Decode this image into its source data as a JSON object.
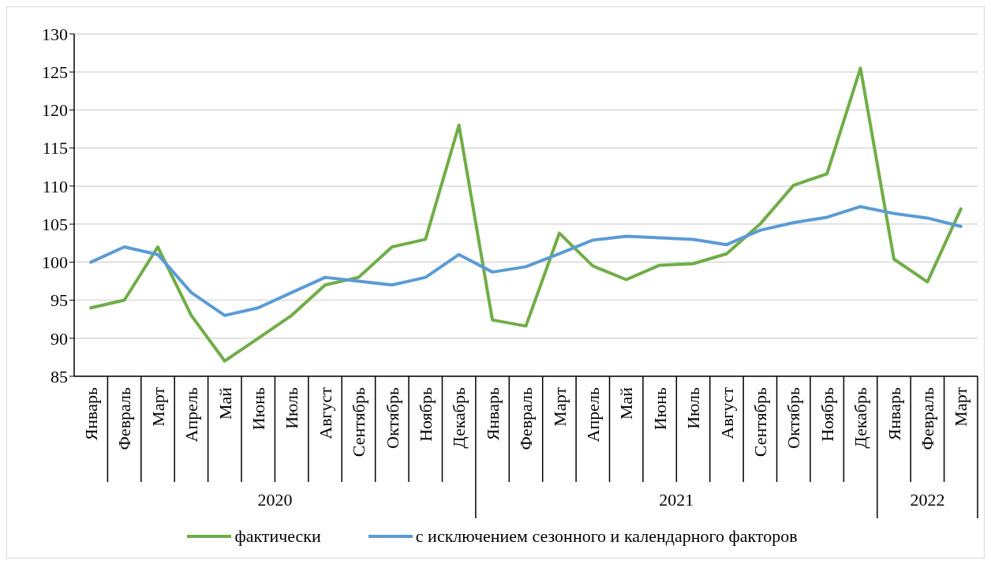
{
  "chart_data": {
    "type": "line",
    "categories": [
      "Январь",
      "Февраль",
      "Март",
      "Апрель",
      "Май",
      "Июнь",
      "Июль",
      "Август",
      "Сентябрь",
      "Октябрь",
      "Ноябрь",
      "Декабрь",
      "Январь",
      "Февраль",
      "Март",
      "Апрель",
      "Май",
      "Июнь",
      "Июль",
      "Август",
      "Сентябрь",
      "Октябрь",
      "Ноябрь",
      "Декабрь",
      "Январь",
      "Февраль",
      "Март"
    ],
    "series": [
      {
        "name": "фактически",
        "color": "#70ad47",
        "values": [
          94,
          95,
          102,
          93,
          87,
          90,
          93,
          97,
          98,
          102,
          103,
          118,
          92.4,
          91.6,
          103.8,
          99.5,
          97.7,
          99.6,
          99.8,
          101.1,
          105,
          110.1,
          111.6,
          125.5,
          100.4,
          97.4,
          107
        ]
      },
      {
        "name": "с исключением сезонного и календарного факторов",
        "color": "#5b9bd5",
        "values": [
          100,
          102,
          101,
          96,
          93,
          94,
          96,
          98,
          97.5,
          97,
          98,
          101,
          98.7,
          99.4,
          101.1,
          102.9,
          103.4,
          103.2,
          103,
          102.3,
          104.2,
          105.2,
          105.9,
          107.3,
          106.4,
          105.8,
          104.7
        ]
      }
    ],
    "annotations": [
      "2020",
      "2021",
      "2022"
    ],
    "ylim": [
      85,
      130
    ],
    "yticks": [
      85,
      90,
      95,
      100,
      105,
      110,
      115,
      120,
      125,
      130
    ],
    "grid": "y",
    "legend": "bottom",
    "marker": "none",
    "line_style": "solid"
  }
}
